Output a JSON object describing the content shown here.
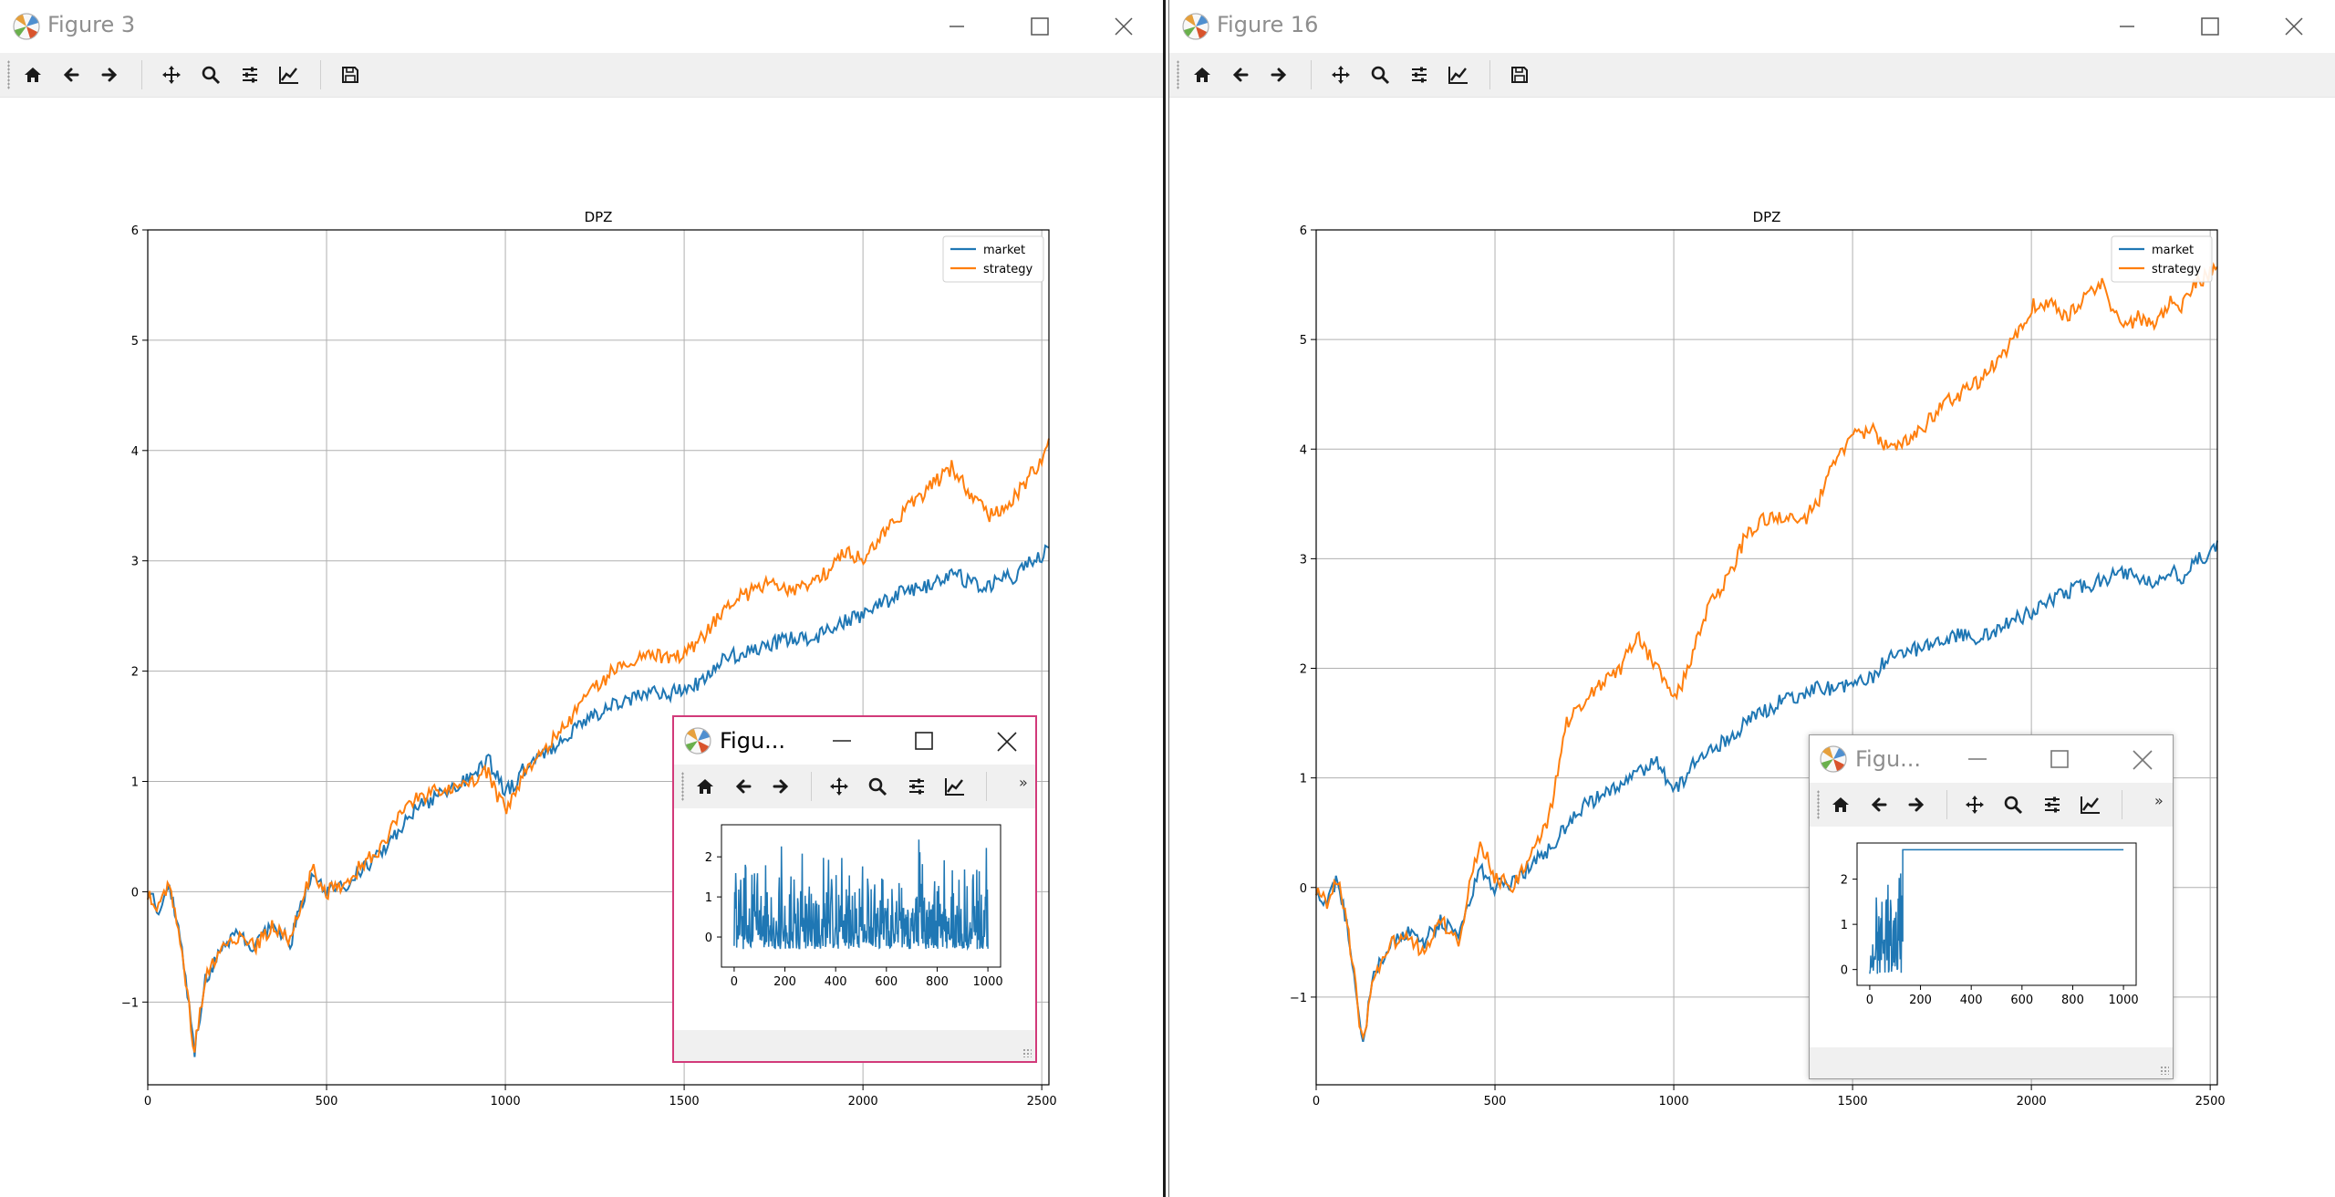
{
  "windows": [
    {
      "title": "Figure 3",
      "toolbar": [
        "home-icon",
        "back-arrow-icon",
        "forward-arrow-icon",
        "pan-icon",
        "zoom-icon",
        "configure-subplots-icon",
        "edit-axes-icon",
        "save-icon"
      ],
      "chart_data": {
        "type": "line",
        "title": "DPZ",
        "xlim": [
          0,
          2520
        ],
        "ylim": [
          -1.75,
          6
        ],
        "xticks": [
          "0",
          "500",
          "1000",
          "1500",
          "2000",
          "2500"
        ],
        "yticks": [
          "−1",
          "0",
          "1",
          "2",
          "3",
          "4",
          "5",
          "6"
        ],
        "grid": true,
        "legend_position": "top-right",
        "series": [
          {
            "name": "market",
            "color": "#1f77b4",
            "x": [
              0,
              30,
              60,
              90,
              110,
              130,
              160,
              200,
              250,
              300,
              350,
              400,
              430,
              460,
              500,
              550,
              600,
              650,
              700,
              750,
              800,
              850,
              900,
              950,
              980,
              1000,
              1030,
              1060,
              1100,
              1150,
              1200,
              1250,
              1300,
              1350,
              1400,
              1450,
              1500,
              1550,
              1600,
              1650,
              1700,
              1750,
              1800,
              1850,
              1900,
              1950,
              2000,
              2050,
              2100,
              2150,
              2200,
              2250,
              2300,
              2350,
              2400,
              2420,
              2450,
              2500,
              2520
            ],
            "y": [
              0,
              -0.15,
              0.1,
              -0.4,
              -0.9,
              -1.45,
              -0.8,
              -0.55,
              -0.4,
              -0.5,
              -0.3,
              -0.45,
              -0.1,
              0.15,
              0.0,
              0.05,
              0.2,
              0.35,
              0.55,
              0.75,
              0.85,
              0.95,
              1.05,
              1.2,
              1.05,
              0.9,
              1.0,
              1.15,
              1.25,
              1.35,
              1.5,
              1.6,
              1.7,
              1.75,
              1.8,
              1.78,
              1.85,
              1.9,
              2.1,
              2.15,
              2.2,
              2.25,
              2.3,
              2.28,
              2.35,
              2.45,
              2.5,
              2.6,
              2.7,
              2.75,
              2.8,
              2.9,
              2.8,
              2.75,
              2.9,
              2.75,
              2.95,
              3.05,
              3.1
            ]
          },
          {
            "name": "strategy",
            "color": "#ff7f0e",
            "x": [
              0,
              30,
              60,
              90,
              110,
              130,
              160,
              200,
              250,
              300,
              350,
              400,
              430,
              460,
              500,
              550,
              600,
              650,
              700,
              750,
              800,
              850,
              900,
              950,
              980,
              1000,
              1030,
              1060,
              1100,
              1150,
              1200,
              1250,
              1300,
              1350,
              1400,
              1450,
              1500,
              1550,
              1600,
              1650,
              1700,
              1750,
              1800,
              1850,
              1900,
              1950,
              2000,
              2050,
              2100,
              2150,
              2200,
              2250,
              2300,
              2350,
              2400,
              2420,
              2450,
              2500,
              2520
            ],
            "y": [
              0,
              -0.15,
              0.1,
              -0.4,
              -0.9,
              -1.45,
              -0.8,
              -0.55,
              -0.4,
              -0.5,
              -0.3,
              -0.45,
              -0.1,
              0.2,
              0.0,
              0.05,
              0.25,
              0.4,
              0.65,
              0.85,
              0.9,
              0.95,
              1.0,
              1.1,
              0.85,
              0.75,
              0.95,
              1.1,
              1.25,
              1.45,
              1.65,
              1.85,
              2.0,
              2.1,
              2.2,
              2.1,
              2.15,
              2.3,
              2.5,
              2.65,
              2.75,
              2.8,
              2.7,
              2.8,
              2.9,
              3.1,
              3.0,
              3.2,
              3.4,
              3.55,
              3.7,
              3.85,
              3.6,
              3.4,
              3.5,
              3.55,
              3.7,
              3.9,
              4.05
            ]
          }
        ]
      },
      "popup": {
        "title": "Figu...",
        "toolbar": [
          "home-icon",
          "back-arrow-icon",
          "forward-arrow-icon",
          "pan-icon",
          "zoom-icon",
          "configure-subplots-icon",
          "edit-axes-icon"
        ],
        "overflow": "»",
        "chart_data": {
          "type": "line",
          "xlim": [
            -50,
            1050
          ],
          "ylim": [
            -0.75,
            2.8
          ],
          "xticks": [
            "0",
            "200",
            "400",
            "600",
            "800",
            "1000"
          ],
          "yticks": [
            "0",
            "1",
            "2"
          ],
          "series": [
            {
              "color": "#1f77b4",
              "description": "noisy values between about -0.6 and 2.6 across 0..1000"
            }
          ]
        }
      }
    },
    {
      "title": "Figure 16",
      "toolbar": [
        "home-icon",
        "back-arrow-icon",
        "forward-arrow-icon",
        "pan-icon",
        "zoom-icon",
        "configure-subplots-icon",
        "edit-axes-icon",
        "save-icon"
      ],
      "chart_data": {
        "type": "line",
        "title": "DPZ",
        "xlim": [
          0,
          2520
        ],
        "ylim": [
          -1.8,
          6
        ],
        "xticks": [
          "0",
          "500",
          "1000",
          "1500",
          "2000",
          "2500"
        ],
        "yticks": [
          "−1",
          "0",
          "1",
          "2",
          "3",
          "4",
          "5",
          "6"
        ],
        "grid": true,
        "legend_position": "top-right",
        "series": [
          {
            "name": "market",
            "color": "#1f77b4",
            "x": [
              0,
              30,
              60,
              90,
              110,
              130,
              160,
              200,
              250,
              300,
              350,
              400,
              430,
              460,
              500,
              550,
              600,
              650,
              700,
              750,
              800,
              850,
              900,
              950,
              980,
              1000,
              1030,
              1060,
              1100,
              1150,
              1200,
              1250,
              1300,
              1350,
              1400,
              1450,
              1500,
              1550,
              1600,
              1650,
              1700,
              1750,
              1800,
              1850,
              1900,
              1950,
              2000,
              2050,
              2100,
              2150,
              2200,
              2250,
              2300,
              2350,
              2400,
              2420,
              2450,
              2500,
              2520
            ],
            "y": [
              0,
              -0.15,
              0.1,
              -0.4,
              -0.9,
              -1.45,
              -0.8,
              -0.55,
              -0.4,
              -0.5,
              -0.3,
              -0.45,
              -0.1,
              0.15,
              0.0,
              0.05,
              0.2,
              0.35,
              0.55,
              0.75,
              0.85,
              0.95,
              1.05,
              1.15,
              1.0,
              0.9,
              1.0,
              1.15,
              1.25,
              1.35,
              1.5,
              1.6,
              1.7,
              1.75,
              1.85,
              1.8,
              1.85,
              1.9,
              2.1,
              2.15,
              2.2,
              2.25,
              2.3,
              2.28,
              2.35,
              2.45,
              2.5,
              2.6,
              2.7,
              2.75,
              2.8,
              2.9,
              2.8,
              2.75,
              2.9,
              2.75,
              2.95,
              3.05,
              3.1
            ]
          },
          {
            "name": "strategy",
            "color": "#ff7f0e",
            "x": [
              0,
              30,
              60,
              90,
              110,
              130,
              160,
              200,
              250,
              300,
              350,
              400,
              430,
              460,
              500,
              550,
              600,
              650,
              700,
              750,
              800,
              850,
              900,
              950,
              980,
              1000,
              1030,
              1060,
              1100,
              1150,
              1200,
              1250,
              1300,
              1350,
              1400,
              1450,
              1500,
              1550,
              1600,
              1650,
              1700,
              1750,
              1800,
              1850,
              1900,
              1950,
              2000,
              2050,
              2100,
              2150,
              2200,
              2250,
              2300,
              2350,
              2400,
              2420,
              2450,
              2500,
              2520
            ],
            "y": [
              0,
              -0.15,
              0.1,
              -0.4,
              -0.9,
              -1.45,
              -0.8,
              -0.55,
              -0.4,
              -0.6,
              -0.3,
              -0.5,
              0.05,
              0.4,
              0.1,
              0.0,
              0.3,
              0.6,
              1.5,
              1.7,
              1.85,
              2.0,
              2.3,
              2.0,
              1.9,
              1.7,
              1.9,
              2.2,
              2.6,
              2.8,
              3.2,
              3.35,
              3.4,
              3.3,
              3.5,
              3.9,
              4.1,
              4.2,
              4.0,
              4.1,
              4.2,
              4.4,
              4.5,
              4.6,
              4.8,
              5.0,
              5.3,
              5.35,
              5.2,
              5.4,
              5.5,
              5.1,
              5.2,
              5.15,
              5.4,
              5.3,
              5.5,
              5.6,
              5.7
            ]
          }
        ]
      },
      "popup": {
        "title": "Figu...",
        "toolbar": [
          "home-icon",
          "back-arrow-icon",
          "forward-arrow-icon",
          "pan-icon",
          "zoom-icon",
          "configure-subplots-icon",
          "edit-axes-icon"
        ],
        "overflow": "»",
        "chart_data": {
          "type": "line",
          "xlim": [
            -50,
            1050
          ],
          "ylim": [
            -0.35,
            2.8
          ],
          "xticks": [
            "0",
            "200",
            "400",
            "600",
            "800",
            "1000"
          ],
          "yticks": [
            "0",
            "1",
            "2"
          ],
          "series": [
            {
              "color": "#1f77b4",
              "description": "noisy values up to ~130, then flat at about 2.65 to 1000"
            }
          ]
        }
      }
    }
  ]
}
